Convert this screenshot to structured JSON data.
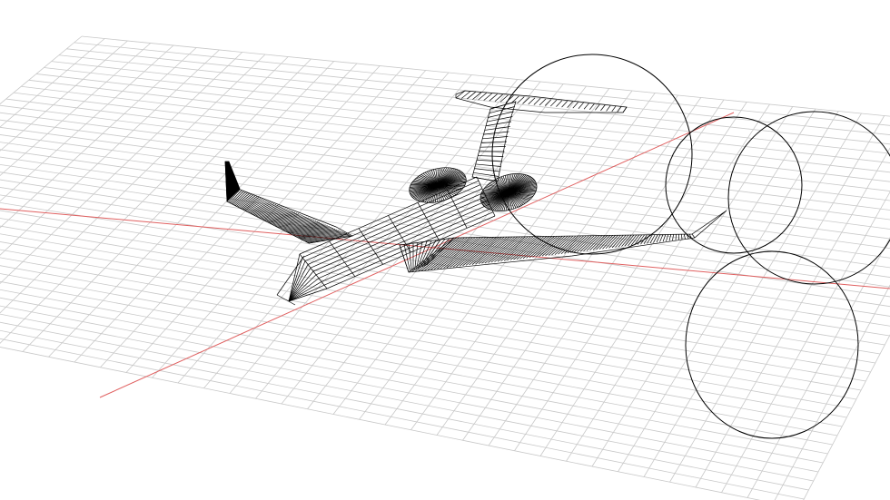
{
  "viewport": {
    "background": "#ffffff",
    "grid_color": "#c8c8c8",
    "axis_color": "#e06060",
    "wire_color": "#000000",
    "view": "perspective",
    "grid_visible": true
  },
  "scene": {
    "model": "business-jet-wireframe",
    "construction_circles": 4
  }
}
